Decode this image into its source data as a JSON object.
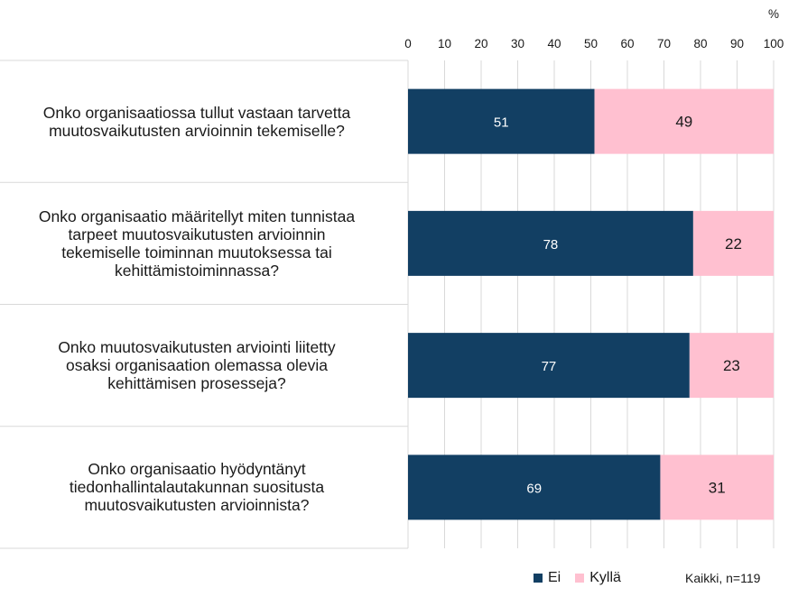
{
  "chart_data": {
    "type": "bar",
    "orientation": "horizontal",
    "stacked": true,
    "unit": "%",
    "xlim": [
      0,
      100
    ],
    "xticks": [
      0,
      10,
      20,
      30,
      40,
      50,
      60,
      70,
      80,
      90,
      100
    ],
    "categories": [
      "Onko organisaatiossa tullut vastaan tarvetta muutosvaikutusten arvioinnin tekemiselle?",
      "Onko organisaatio määritellyt miten tunnistaa tarpeet muutosvaikutusten arvioinnin tekemiselle toiminnan muutoksessa tai kehittämistoiminnassa?",
      "Onko muutosvaikutusten arviointi liitetty osaksi organisaation olemassa olevia kehittämisen prosesseja?",
      "Onko organisaatio hyödyntänyt tiedonhallintalautakunnan suositusta muutosvaikutusten arvioinnista?"
    ],
    "series": [
      {
        "name": "Ei",
        "color": "#123f63",
        "label_color": "#ffffff",
        "values": [
          51,
          78,
          77,
          69
        ]
      },
      {
        "name": "Kyllä",
        "color": "#ffc0d0",
        "label_color": "#1a1a1a",
        "values": [
          49,
          22,
          23,
          31
        ]
      }
    ],
    "legend_position": "bottom-right",
    "grid": true,
    "note": "Kaikki, n=119"
  }
}
